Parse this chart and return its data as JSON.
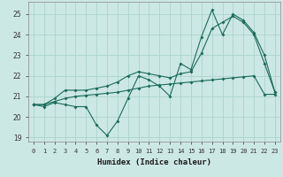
{
  "xlabel": "Humidex (Indice chaleur)",
  "background_color": "#cce8e4",
  "grid_color": "#aad4cc",
  "line_color": "#1a6b5a",
  "x_values": [
    0,
    1,
    2,
    3,
    4,
    5,
    6,
    7,
    8,
    9,
    10,
    11,
    12,
    13,
    14,
    15,
    16,
    17,
    18,
    19,
    20,
    21,
    22,
    23
  ],
  "line1": [
    20.6,
    20.5,
    20.7,
    20.6,
    20.5,
    20.5,
    19.6,
    19.1,
    19.8,
    20.9,
    22.0,
    21.8,
    21.5,
    21.0,
    22.6,
    22.3,
    23.9,
    25.2,
    24.0,
    25.0,
    24.7,
    24.1,
    23.0,
    21.2
  ],
  "line2": [
    20.6,
    20.6,
    20.75,
    20.9,
    21.0,
    21.05,
    21.1,
    21.15,
    21.2,
    21.3,
    21.4,
    21.5,
    21.55,
    21.6,
    21.65,
    21.7,
    21.75,
    21.8,
    21.85,
    21.9,
    21.95,
    22.0,
    21.1,
    21.1
  ],
  "line3": [
    20.6,
    20.6,
    20.9,
    21.3,
    21.3,
    21.3,
    21.4,
    21.5,
    21.7,
    22.0,
    22.2,
    22.1,
    22.0,
    21.9,
    22.1,
    22.2,
    23.1,
    24.3,
    24.6,
    24.9,
    24.6,
    24.0,
    22.6,
    21.2
  ],
  "ylim": [
    18.8,
    25.6
  ],
  "xlim": [
    -0.5,
    23.5
  ],
  "yticks": [
    19,
    20,
    21,
    22,
    23,
    24,
    25
  ],
  "xticks": [
    0,
    1,
    2,
    3,
    4,
    5,
    6,
    7,
    8,
    9,
    10,
    11,
    12,
    13,
    14,
    15,
    16,
    17,
    18,
    19,
    20,
    21,
    22,
    23
  ]
}
